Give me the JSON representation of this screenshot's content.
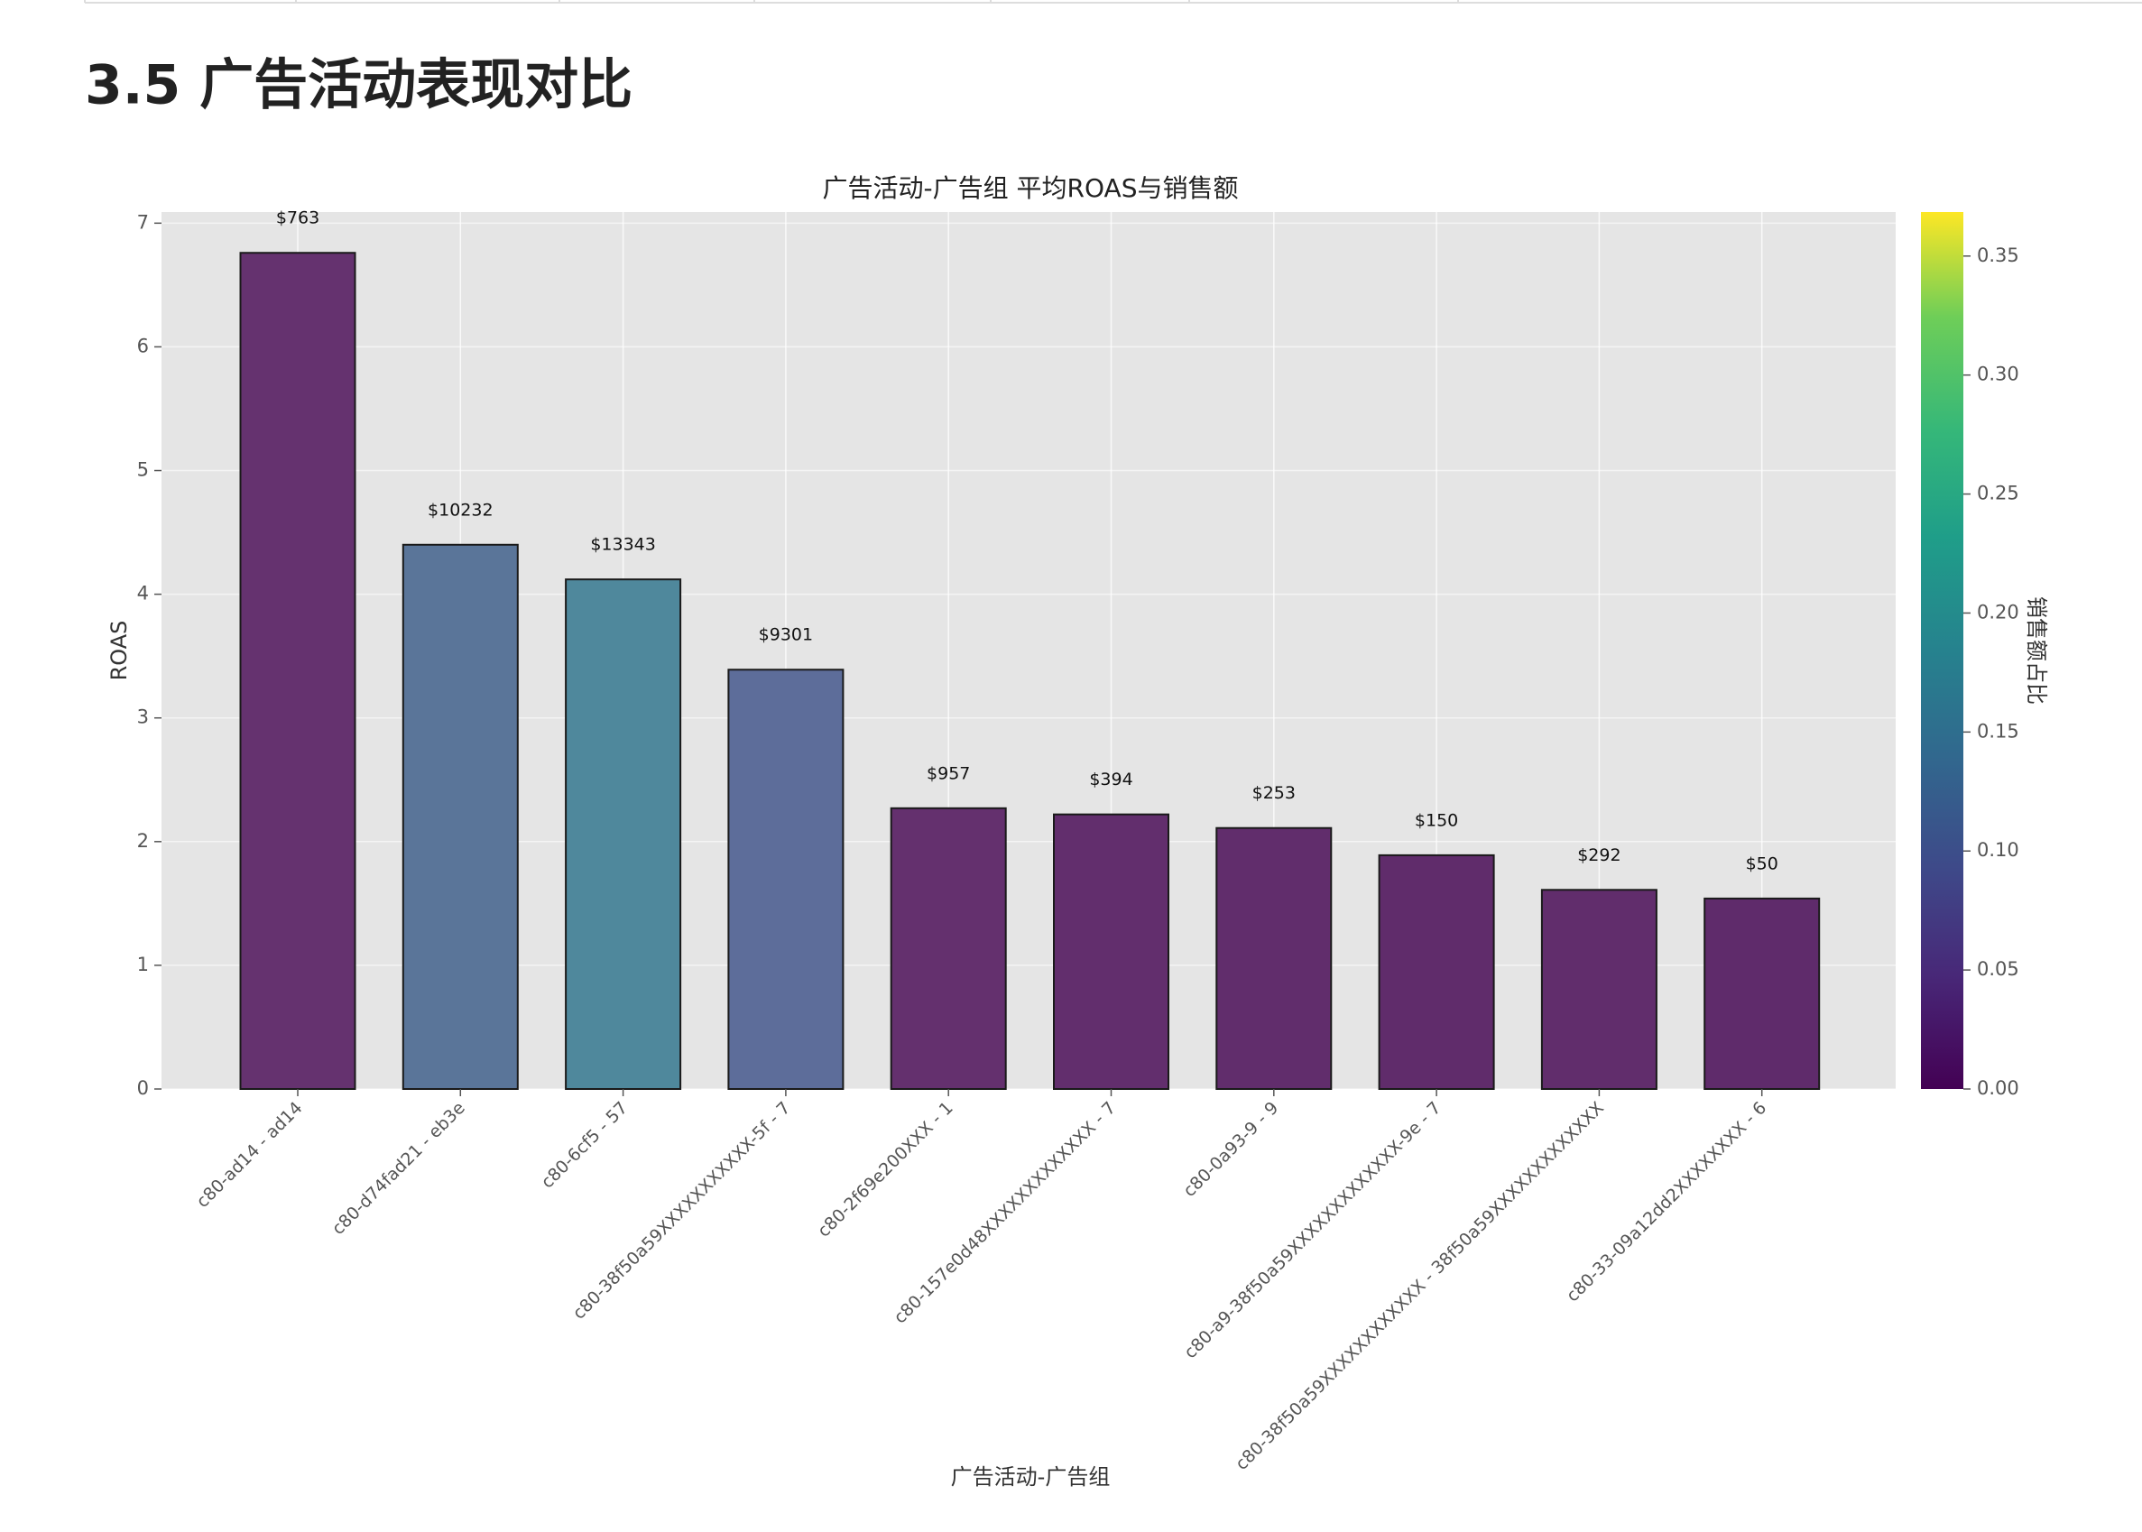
{
  "heading": "3.5 广告活动表现对比",
  "chart_data": {
    "type": "bar",
    "title": "广告活动-广告组 平均ROAS与销售额",
    "xlabel": "广告活动-广告组",
    "ylabel": "ROAS",
    "categories": [
      "c80-ad14 - ad14",
      "c80-d74fad21 - eb3e",
      "c80-6cf5 - 57",
      "c80-38f50a59XXXXXXXXXXX-5f - 7",
      "c80-2f69e200XXX - 1",
      "c80-157e0d48XXXXXXXXXXXXX - 7",
      "c80-0a93-9 - 9",
      "c80-a9-38f50a59XXXXXXXXXXXXX-9e - 7",
      "c80-38f50a59XXXXXXXXXXXX - 38f50a59XXXXXXXXXXXXX",
      "c80-33-09a12dd2XXXXXXXX - 6"
    ],
    "values": [
      6.76,
      4.4,
      4.12,
      3.39,
      2.27,
      2.22,
      2.11,
      1.89,
      1.61,
      1.54
    ],
    "colors": [
      "#65326f",
      "#5a7599",
      "#4f889c",
      "#5d6d9a",
      "#64306e",
      "#622e6d",
      "#612d6c",
      "#602c6b",
      "#612d6c",
      "#5f2b6b"
    ],
    "sales": {
      "values": [
        763,
        10232,
        13343,
        9301,
        957,
        394,
        253,
        150,
        292,
        50
      ],
      "value_labels": [
        "$763",
        "$10232",
        "$13343",
        "$9301",
        "$957",
        "$394",
        "$253",
        "$150",
        "$292",
        "$50"
      ]
    },
    "ylim": [
      0,
      7.09
    ],
    "yticks": [
      0,
      1,
      2,
      3,
      4,
      5,
      6,
      7
    ],
    "grid": true,
    "colorbar": {
      "label": "销售额占比",
      "colormap": "viridis",
      "lim": [
        0,
        0.3685
      ],
      "ticks": [
        {
          "value": 0,
          "label": "0.00"
        },
        {
          "value": 0.05,
          "label": "0.05"
        },
        {
          "value": 0.1,
          "label": "0.10"
        },
        {
          "value": 0.15,
          "label": "0.15"
        },
        {
          "value": 0.2,
          "label": "0.20"
        },
        {
          "value": 0.25,
          "label": "0.25"
        },
        {
          "value": 0.3,
          "label": "0.30"
        },
        {
          "value": 0.35,
          "label": "0.35"
        }
      ]
    }
  }
}
